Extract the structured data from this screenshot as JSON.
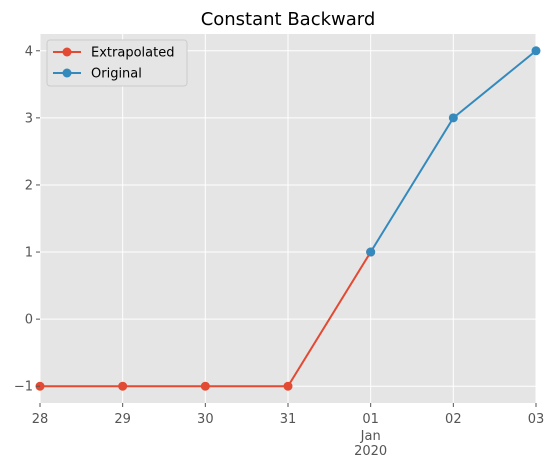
{
  "chart_data": {
    "type": "line",
    "title": "Constant Backward",
    "xlabel": "",
    "ylabel": "",
    "x": [
      "2019-12-28",
      "2019-12-29",
      "2019-12-30",
      "2019-12-31",
      "2020-01-01",
      "2020-01-02",
      "2020-01-03"
    ],
    "x_tick_labels": [
      "28",
      "29",
      "30",
      "31",
      "01",
      "02",
      "03"
    ],
    "x_secondary_labels": [
      "Jan",
      "2020"
    ],
    "xlim": [
      "2019-12-28",
      "2020-01-03"
    ],
    "y_tick_labels": [
      "−1",
      "0",
      "1",
      "2",
      "3",
      "4"
    ],
    "ylim": [
      -1.25,
      4.25
    ],
    "grid": true,
    "legend": "top-left",
    "series": [
      {
        "name": "Extrapolated",
        "color": "#E24A33",
        "x": [
          "2019-12-28",
          "2019-12-29",
          "2019-12-30",
          "2019-12-31",
          "2020-01-01"
        ],
        "values": [
          -1,
          -1,
          -1,
          -1,
          1
        ]
      },
      {
        "name": "Original",
        "color": "#348ABD",
        "x": [
          "2020-01-01",
          "2020-01-02",
          "2020-01-03"
        ],
        "values": [
          1,
          3,
          4
        ]
      }
    ]
  }
}
